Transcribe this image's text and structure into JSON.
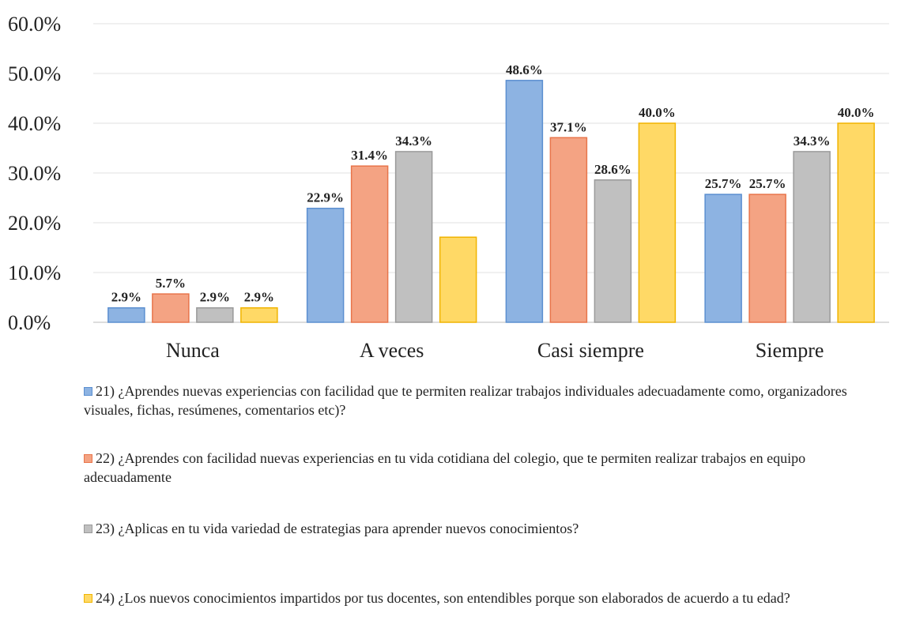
{
  "chart_data": {
    "type": "bar",
    "categories": [
      "Nunca",
      "A veces",
      "Casi siempre",
      "Siempre"
    ],
    "series": [
      {
        "name": "21) ¿Aprendes nuevas experiencias con facilidad que te permiten realizar trabajos individuales adecuadamente como, organizadores visuales, fichas, resúmenes, comentarios etc)?",
        "color": "#8db3e2",
        "values": [
          2.9,
          22.9,
          48.6,
          25.7
        ],
        "value_labels": [
          "2.9%",
          "22.9%",
          "48.6%",
          "25.7%"
        ]
      },
      {
        "name": "22) ¿Aprendes  con facilidad nuevas experiencias en tu vida cotidiana del colegio, que te permiten realizar trabajos en equipo adecuadamente",
        "color": "#f4a383",
        "values": [
          5.7,
          31.4,
          37.1,
          25.7
        ],
        "value_labels": [
          "5.7%",
          "31.4%",
          "37.1%",
          "25.7%"
        ]
      },
      {
        "name": "23) ¿Aplicas en tu vida variedad de  estrategias para aprender nuevos conocimientos?",
        "color": "#c0c0c0",
        "values": [
          2.9,
          34.3,
          28.6,
          34.3
        ],
        "value_labels": [
          "2.9%",
          "34.3%",
          "28.6%",
          "34.3%"
        ]
      },
      {
        "name": "24) ¿Los nuevos conocimientos impartidos por tus docentes,  son entendibles porque son elaborados de acuerdo a tu edad?",
        "color": "#ffd966",
        "values": [
          2.9,
          17.1,
          40.0,
          40.0
        ],
        "value_labels": [
          "2.9%",
          null,
          "40.0%",
          "40.0%"
        ]
      }
    ],
    "ylim": [
      0,
      60
    ],
    "yticks": [
      {
        "value": 0,
        "label": "0.0%"
      },
      {
        "value": 10,
        "label": "10.0%"
      },
      {
        "value": 20,
        "label": "20.0%"
      },
      {
        "value": 30,
        "label": "30.0%"
      },
      {
        "value": 40,
        "label": "40.0%"
      },
      {
        "value": 50,
        "label": "50.0%"
      },
      {
        "value": 60,
        "label": "60.0%"
      }
    ],
    "grid": true,
    "legend": "bottom"
  }
}
